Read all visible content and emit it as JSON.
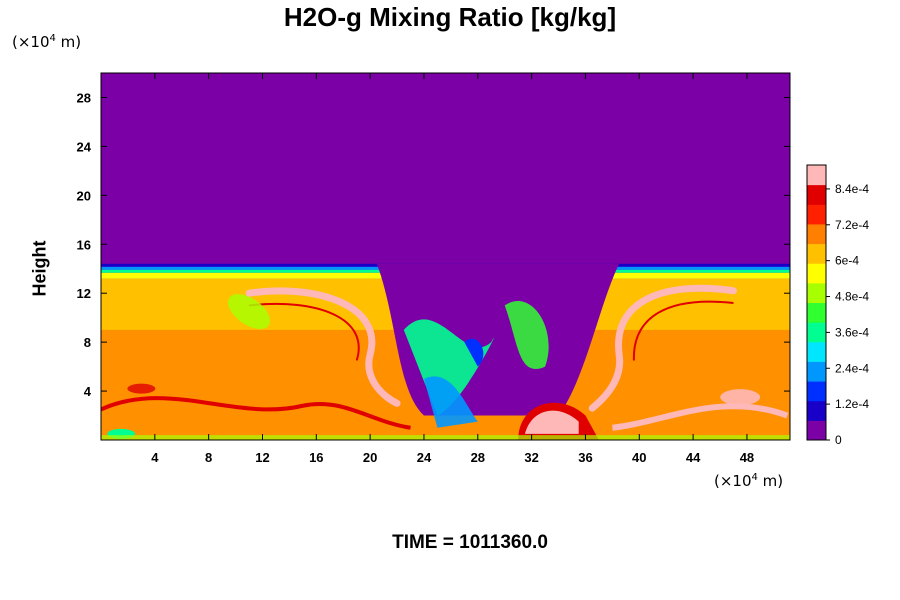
{
  "chart_data": {
    "type": "heatmap",
    "title": "H2O-g Mixing Ratio [kg/kg]",
    "ylabel": "Height",
    "x_unit_prefix": "(×10",
    "x_unit_exp": "4",
    "x_unit_suffix": " m)",
    "y_unit_prefix": "(×10",
    "y_unit_exp": "4",
    "y_unit_suffix": " m)",
    "footer": "TIME = 1011360.0",
    "xlim": [
      0,
      51.2
    ],
    "ylim": [
      0,
      30
    ],
    "x_ticks": [
      4,
      8,
      12,
      16,
      20,
      24,
      28,
      32,
      36,
      40,
      44,
      48
    ],
    "y_ticks": [
      4,
      8,
      12,
      16,
      20,
      24,
      28
    ],
    "colorbar": {
      "vmin": 0,
      "vmax": 0.00092,
      "labels": [
        "0",
        "1.2e-4",
        "2.4e-4",
        "3.6e-4",
        "4.8e-4",
        "6e-4",
        "7.2e-4",
        "8.4e-4"
      ],
      "label_values": [
        0,
        0.00012,
        0.00024,
        0.00036,
        0.00048,
        0.0006,
        0.00072,
        0.00084
      ],
      "colors": [
        "#7b00a6",
        "#1800c8",
        "#0030ff",
        "#0098ff",
        "#00e6ff",
        "#00ff90",
        "#30ff30",
        "#a8ff00",
        "#ffff00",
        "#ffc000",
        "#ff8000",
        "#ff2000",
        "#e00000",
        "#ffb8b8"
      ]
    }
  }
}
